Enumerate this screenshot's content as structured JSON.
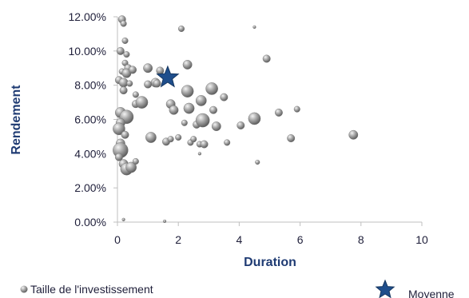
{
  "chart_data": {
    "type": "scatter",
    "xlabel": "Duration",
    "ylabel": "Rendement",
    "xlim": [
      0,
      10
    ],
    "ylim": [
      0,
      0.12
    ],
    "x_ticks": [
      0,
      2,
      4,
      6,
      8,
      10
    ],
    "y_ticks": [
      0,
      0.02,
      0.04,
      0.06,
      0.08,
      0.1,
      0.12
    ],
    "x_tick_labels": [
      "0",
      "2",
      "4",
      "6",
      "8",
      "10"
    ],
    "y_tick_labels": [
      "0.00%",
      "2.00%",
      "4.00%",
      "6.00%",
      "8.00%",
      "10.00%",
      "12.00%"
    ],
    "grid": false,
    "legend_position": "bottom",
    "colors": {
      "bubble": "#a8a8a8",
      "star": "#1f4e8c",
      "axis": "#bfbfbf",
      "title": "#1f3b73"
    },
    "series": [
      {
        "name": "Taille de l'investissement",
        "points": [
          {
            "x": 0.15,
            "y": 0.1185,
            "size": 5
          },
          {
            "x": 0.2,
            "y": 0.116,
            "size": 4
          },
          {
            "x": 0.25,
            "y": 0.106,
            "size": 4
          },
          {
            "x": 0.1,
            "y": 0.1,
            "size": 5
          },
          {
            "x": 0.3,
            "y": 0.098,
            "size": 4
          },
          {
            "x": 0.25,
            "y": 0.093,
            "size": 4
          },
          {
            "x": 0.35,
            "y": 0.09,
            "size": 5
          },
          {
            "x": 0.15,
            "y": 0.088,
            "size": 4
          },
          {
            "x": 0.3,
            "y": 0.087,
            "size": 6
          },
          {
            "x": 0.5,
            "y": 0.089,
            "size": 5
          },
          {
            "x": 0.05,
            "y": 0.083,
            "size": 5
          },
          {
            "x": 0.2,
            "y": 0.0815,
            "size": 6
          },
          {
            "x": 0.4,
            "y": 0.081,
            "size": 4
          },
          {
            "x": 0.2,
            "y": 0.077,
            "size": 5
          },
          {
            "x": 0.6,
            "y": 0.0745,
            "size": 4
          },
          {
            "x": 0.6,
            "y": 0.069,
            "size": 5
          },
          {
            "x": 0.1,
            "y": 0.064,
            "size": 7
          },
          {
            "x": 0.3,
            "y": 0.0615,
            "size": 9
          },
          {
            "x": 0.1,
            "y": 0.058,
            "size": 6
          },
          {
            "x": 0.05,
            "y": 0.0545,
            "size": 8
          },
          {
            "x": 0.25,
            "y": 0.051,
            "size": 5
          },
          {
            "x": 0.1,
            "y": 0.046,
            "size": 6
          },
          {
            "x": 0.1,
            "y": 0.042,
            "size": 10
          },
          {
            "x": 0.05,
            "y": 0.038,
            "size": 5
          },
          {
            "x": 0.2,
            "y": 0.034,
            "size": 6
          },
          {
            "x": 0.3,
            "y": 0.031,
            "size": 8
          },
          {
            "x": 0.45,
            "y": 0.032,
            "size": 7
          },
          {
            "x": 0.6,
            "y": 0.0355,
            "size": 4
          },
          {
            "x": 0.8,
            "y": 0.07,
            "size": 8
          },
          {
            "x": 1.25,
            "y": 0.0815,
            "size": 6
          },
          {
            "x": 1.3,
            "y": 0.081,
            "size": 5
          },
          {
            "x": 1.0,
            "y": 0.0805,
            "size": 5
          },
          {
            "x": 1.0,
            "y": 0.09,
            "size": 6
          },
          {
            "x": 1.4,
            "y": 0.0885,
            "size": 5
          },
          {
            "x": 1.1,
            "y": 0.0495,
            "size": 7
          },
          {
            "x": 1.6,
            "y": 0.047,
            "size": 5
          },
          {
            "x": 1.75,
            "y": 0.0485,
            "size": 4
          },
          {
            "x": 1.75,
            "y": 0.069,
            "size": 6
          },
          {
            "x": 1.85,
            "y": 0.0655,
            "size": 6
          },
          {
            "x": 2.0,
            "y": 0.0495,
            "size": 4
          },
          {
            "x": 2.1,
            "y": 0.113,
            "size": 4
          },
          {
            "x": 2.2,
            "y": 0.058,
            "size": 4
          },
          {
            "x": 2.3,
            "y": 0.092,
            "size": 6
          },
          {
            "x": 2.3,
            "y": 0.0765,
            "size": 8
          },
          {
            "x": 2.35,
            "y": 0.0665,
            "size": 7
          },
          {
            "x": 2.4,
            "y": 0.0465,
            "size": 4
          },
          {
            "x": 2.5,
            "y": 0.0485,
            "size": 4
          },
          {
            "x": 2.6,
            "y": 0.057,
            "size": 5
          },
          {
            "x": 2.7,
            "y": 0.0455,
            "size": 4
          },
          {
            "x": 2.75,
            "y": 0.071,
            "size": 7
          },
          {
            "x": 2.8,
            "y": 0.0595,
            "size": 9
          },
          {
            "x": 2.85,
            "y": 0.0455,
            "size": 5
          },
          {
            "x": 3.1,
            "y": 0.078,
            "size": 8
          },
          {
            "x": 3.15,
            "y": 0.0655,
            "size": 5
          },
          {
            "x": 3.25,
            "y": 0.056,
            "size": 6
          },
          {
            "x": 3.5,
            "y": 0.073,
            "size": 5
          },
          {
            "x": 3.6,
            "y": 0.0465,
            "size": 4
          },
          {
            "x": 4.05,
            "y": 0.0565,
            "size": 5
          },
          {
            "x": 4.5,
            "y": 0.0605,
            "size": 8
          },
          {
            "x": 4.9,
            "y": 0.0955,
            "size": 5
          },
          {
            "x": 5.3,
            "y": 0.064,
            "size": 5
          },
          {
            "x": 5.7,
            "y": 0.049,
            "size": 5
          },
          {
            "x": 5.9,
            "y": 0.066,
            "size": 4
          },
          {
            "x": 7.75,
            "y": 0.051,
            "size": 6
          },
          {
            "x": 2.7,
            "y": 0.04,
            "size": 2
          },
          {
            "x": 4.6,
            "y": 0.035,
            "size": 3
          },
          {
            "x": 4.5,
            "y": 0.114,
            "size": 2
          },
          {
            "x": 1.55,
            "y": 0.0005,
            "size": 2
          },
          {
            "x": 0.2,
            "y": 0.0015,
            "size": 2
          }
        ]
      },
      {
        "name": "Moyenne",
        "points": [
          {
            "x": 1.65,
            "y": 0.0845
          }
        ]
      }
    ]
  }
}
